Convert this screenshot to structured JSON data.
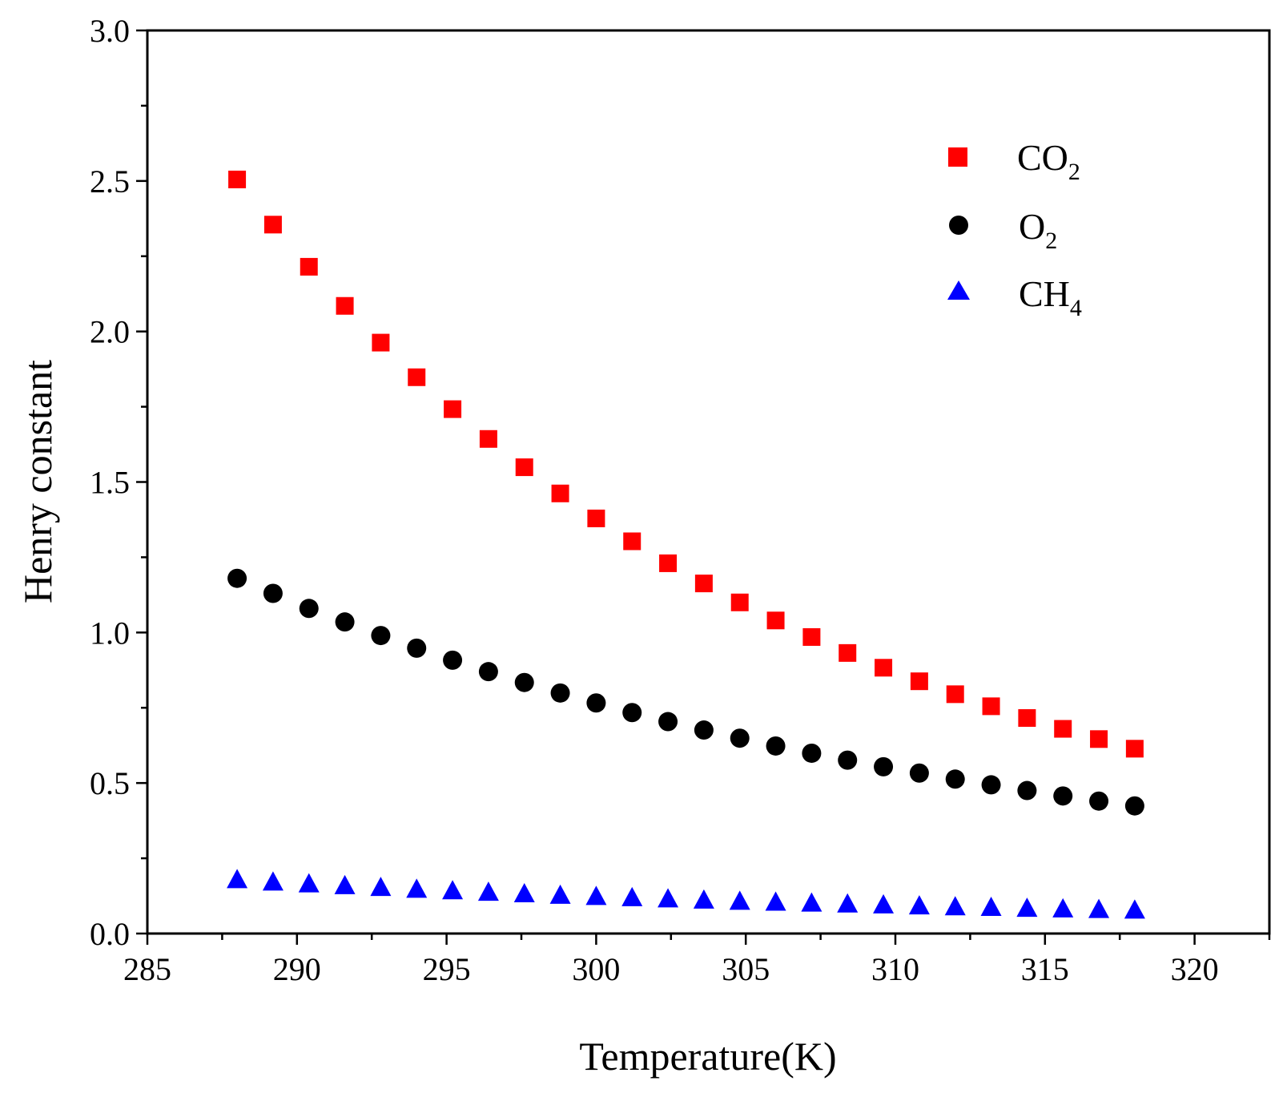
{
  "chart_data": {
    "type": "scatter",
    "title": "",
    "xlabel": "Temperature(K)",
    "ylabel": "Henry constant",
    "xlim": [
      285,
      322.5
    ],
    "ylim": [
      0.0,
      3.0
    ],
    "xticks": [
      "285",
      "290",
      "295",
      "300",
      "305",
      "310",
      "315",
      "320"
    ],
    "yticks": [
      "0.0",
      "0.5",
      "1.0",
      "1.5",
      "2.0",
      "2.5",
      "3.0"
    ],
    "grid": false,
    "legend_position": "top-right",
    "x": [
      288.0,
      289.2,
      290.4,
      291.6,
      292.8,
      294.0,
      295.2,
      296.4,
      297.6,
      298.8,
      300.0,
      301.2,
      302.4,
      303.6,
      304.8,
      306.0,
      307.2,
      308.4,
      309.6,
      310.8,
      312.0,
      313.2,
      314.4,
      315.6,
      316.8,
      318.0
    ],
    "series": [
      {
        "name": "CO2",
        "label_main": "CO",
        "label_sub": "2",
        "marker": "square",
        "color": "#ff0000",
        "values": [
          2.505,
          2.355,
          2.215,
          2.085,
          1.963,
          1.848,
          1.742,
          1.643,
          1.549,
          1.462,
          1.379,
          1.303,
          1.23,
          1.163,
          1.1,
          1.04,
          0.985,
          0.932,
          0.883,
          0.838,
          0.795,
          0.755,
          0.716,
          0.68,
          0.646,
          0.614
        ]
      },
      {
        "name": "O2",
        "label_main": "O",
        "label_sub": "2",
        "marker": "circle",
        "color": "#000000",
        "values": [
          1.18,
          1.13,
          1.08,
          1.035,
          0.99,
          0.948,
          0.908,
          0.87,
          0.834,
          0.799,
          0.766,
          0.734,
          0.704,
          0.676,
          0.649,
          0.623,
          0.599,
          0.576,
          0.554,
          0.533,
          0.513,
          0.494,
          0.475,
          0.457,
          0.44,
          0.424
        ]
      },
      {
        "name": "CH4",
        "label_main": "CH",
        "label_sub": "4",
        "marker": "triangle",
        "color": "#0000ff",
        "values": [
          0.18,
          0.172,
          0.166,
          0.16,
          0.154,
          0.148,
          0.143,
          0.138,
          0.133,
          0.128,
          0.124,
          0.12,
          0.116,
          0.112,
          0.108,
          0.105,
          0.102,
          0.099,
          0.096,
          0.093,
          0.09,
          0.088,
          0.085,
          0.083,
          0.081,
          0.079
        ]
      }
    ]
  }
}
